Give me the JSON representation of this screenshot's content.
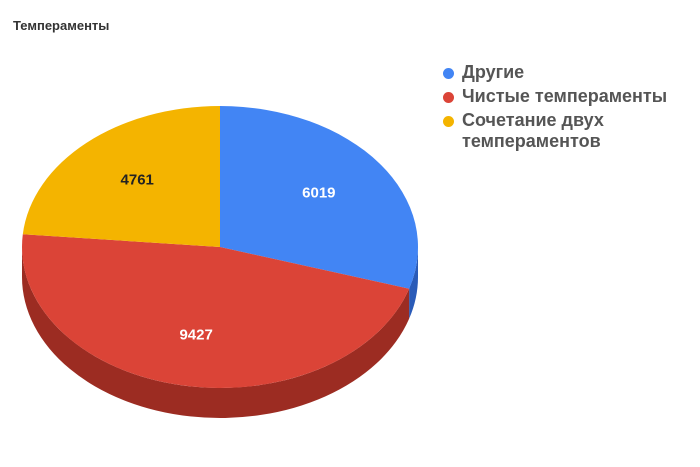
{
  "chart_data": {
    "type": "pie",
    "title": "Темпераменты",
    "categories": [
      "Другие",
      "Чистые темпераменты",
      "Сочетание двух темпераментов"
    ],
    "values": [
      6019,
      9427,
      4761
    ],
    "colors": [
      "#4285f4",
      "#db4437",
      "#f4b400"
    ],
    "side_colors": [
      "#2a5bb8",
      "#9c2c22",
      "#b58500"
    ],
    "label_colors": [
      "#ffffff",
      "#ffffff",
      "#222222"
    ],
    "legend_position": "right",
    "style": "3d"
  }
}
